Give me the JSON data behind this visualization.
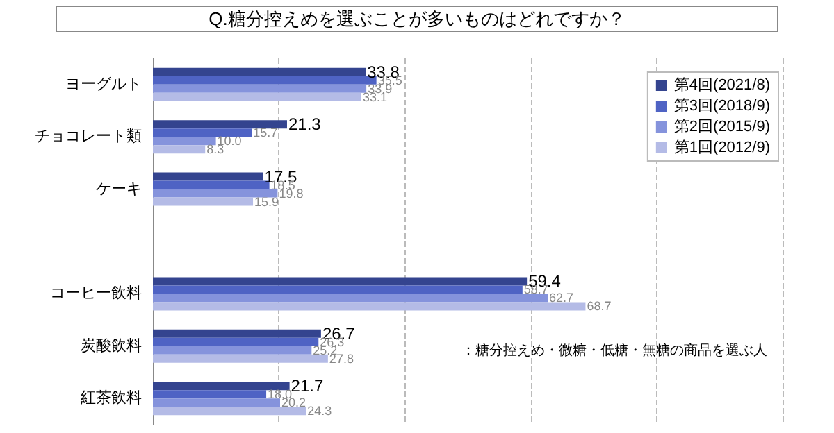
{
  "chart_data": {
    "type": "bar",
    "orientation": "horizontal",
    "title": "Q.糖分控えめを選ぶことが多いものはどれですか？",
    "categories": [
      "ヨーグルト",
      "チョコレート類",
      "ケーキ",
      null,
      "コーヒー飲料",
      "炭酸飲料",
      "紅茶飲料"
    ],
    "series": [
      {
        "name": "第4回(2021/8)",
        "color": "#34448f",
        "values": [
          33.8,
          21.3,
          17.5,
          null,
          59.4,
          26.7,
          21.7
        ],
        "value_labels": [
          "33.8",
          "21.3",
          "17.5",
          null,
          "59.4",
          "26.7",
          "21.7"
        ]
      },
      {
        "name": "第3回(2018/9)",
        "color": "#4f63c4",
        "values": [
          35.5,
          15.7,
          18.5,
          null,
          58.7,
          26.3,
          18.0
        ],
        "value_labels": [
          "35.5",
          "15.7",
          "18.5",
          null,
          "58.7",
          "26.3",
          "18.0"
        ]
      },
      {
        "name": "第2回(2015/9)",
        "color": "#8593dc",
        "values": [
          33.9,
          10.0,
          19.8,
          null,
          62.7,
          25.2,
          20.2
        ],
        "value_labels": [
          "33.9",
          "10.0",
          "19.8",
          null,
          "62.7",
          "25.2",
          "20.2"
        ]
      },
      {
        "name": "第1回(2012/9)",
        "color": "#b4bbe6",
        "values": [
          33.1,
          8.3,
          15.9,
          null,
          68.7,
          27.8,
          24.3
        ],
        "value_labels": [
          "33.1",
          "8.3",
          "15.9",
          null,
          "68.7",
          "27.8",
          "24.3"
        ]
      }
    ],
    "xlim": [
      0,
      100
    ],
    "xticks": [
      {
        "value": 0,
        "label": null
      },
      {
        "value": 20,
        "label": null
      },
      {
        "value": 40,
        "label": null
      },
      {
        "value": 60,
        "label": null
      },
      {
        "value": 80,
        "label": null
      },
      {
        "value": 100,
        "label": null
      }
    ],
    "grid": "x",
    "legend": "top right",
    "tick_labels": "y",
    "annotations": [
      "：糖分控えめ・微糖・低糖・無糖の商品を選ぶ人"
    ]
  }
}
